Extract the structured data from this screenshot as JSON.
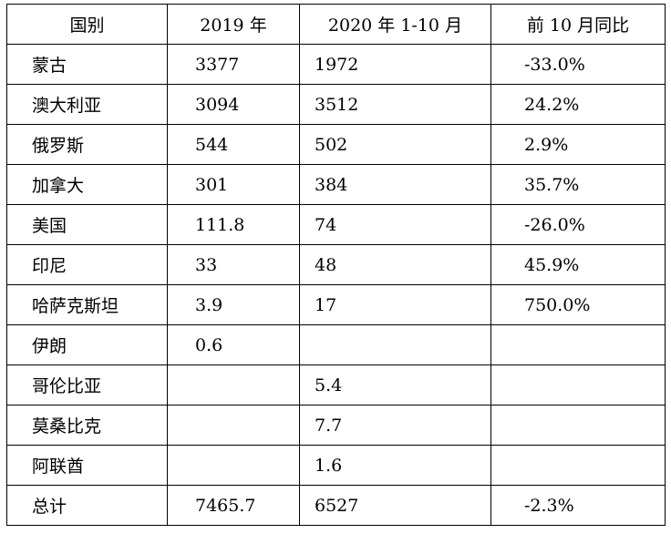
{
  "chart_data": {
    "type": "table",
    "columns": [
      "国别",
      "2019 年",
      "2020 年 1-10 月",
      "前 10 月同比"
    ],
    "rows": [
      [
        "蒙古",
        "3377",
        "1972",
        "-33.0%"
      ],
      [
        "澳大利亚",
        "3094",
        "3512",
        "24.2%"
      ],
      [
        "俄罗斯",
        "544",
        "502",
        "2.9%"
      ],
      [
        "加拿大",
        "301",
        "384",
        "35.7%"
      ],
      [
        "美国",
        "111.8",
        "74",
        "-26.0%"
      ],
      [
        "印尼",
        "33",
        "48",
        "45.9%"
      ],
      [
        "哈萨克斯坦",
        "3.9",
        "17",
        "750.0%"
      ],
      [
        "伊朗",
        "0.6",
        "",
        ""
      ],
      [
        "哥伦比亚",
        "",
        "5.4",
        ""
      ],
      [
        "莫桑比克",
        "",
        "7.7",
        ""
      ],
      [
        "阿联酋",
        "",
        "1.6",
        ""
      ],
      [
        "总计",
        "7465.7",
        "6527",
        "-2.3%"
      ]
    ]
  }
}
